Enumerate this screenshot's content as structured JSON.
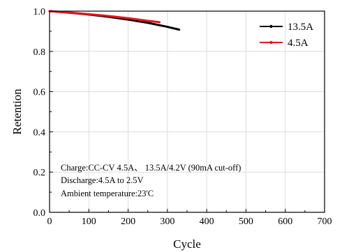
{
  "chart_data": {
    "type": "line",
    "xlabel": "Cycle",
    "ylabel": "Retention",
    "xlim": [
      0,
      700
    ],
    "ylim": [
      0.0,
      1.0
    ],
    "xticks": [
      0,
      100,
      200,
      300,
      400,
      500,
      600,
      700
    ],
    "yticks": [
      0.0,
      0.2,
      0.4,
      0.6,
      0.8,
      1.0
    ],
    "xtick_labels": [
      "0",
      "100",
      "200",
      "300",
      "400",
      "500",
      "600",
      "700"
    ],
    "ytick_labels": [
      "0.0",
      "0.2",
      "0.4",
      "0.6",
      "0.8",
      "1.0"
    ],
    "grid": true,
    "legend_position": "top-right",
    "series": [
      {
        "name": "13.5A",
        "color": "#000000",
        "x": [
          0,
          50,
          100,
          150,
          200,
          250,
          300,
          330
        ],
        "y": [
          1.0,
          0.992,
          0.983,
          0.972,
          0.958,
          0.942,
          0.922,
          0.908
        ]
      },
      {
        "name": "4.5A",
        "color": "#e8141b",
        "x": [
          0,
          50,
          100,
          150,
          200,
          250,
          280
        ],
        "y": [
          1.0,
          0.993,
          0.985,
          0.976,
          0.965,
          0.952,
          0.945
        ]
      }
    ],
    "annotations": [
      "Charge:CC-CV 4.5A、 13.5A/4.2V (90mA cut-off)",
      "Discharge:4.5A to 2.5V",
      "Ambient temperature:23'C"
    ]
  }
}
